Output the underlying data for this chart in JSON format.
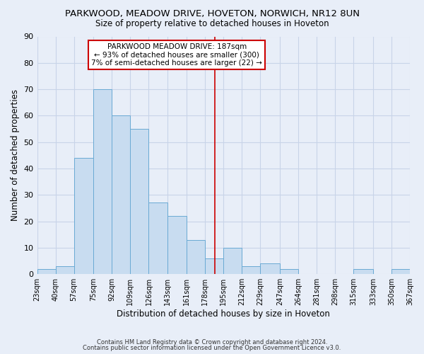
{
  "title": "PARKWOOD, MEADOW DRIVE, HOVETON, NORWICH, NR12 8UN",
  "subtitle": "Size of property relative to detached houses in Hoveton",
  "xlabel": "Distribution of detached houses by size in Hoveton",
  "ylabel": "Number of detached properties",
  "footer_line1": "Contains HM Land Registry data © Crown copyright and database right 2024.",
  "footer_line2": "Contains public sector information licensed under the Open Government Licence v3.0.",
  "bin_edges": [
    23,
    40,
    57,
    75,
    92,
    109,
    126,
    143,
    161,
    178,
    195,
    212,
    229,
    247,
    264,
    281,
    298,
    315,
    333,
    350,
    367
  ],
  "bar_heights": [
    2,
    3,
    44,
    70,
    60,
    55,
    27,
    22,
    13,
    6,
    10,
    3,
    4,
    2,
    0,
    0,
    0,
    2,
    0,
    2
  ],
  "bar_color": "#c8dcf0",
  "bar_edge_color": "#6aaad4",
  "reference_line_x": 187,
  "annotation_title": "PARKWOOD MEADOW DRIVE: 187sqm",
  "annotation_line1": "← 93% of detached houses are smaller (300)",
  "annotation_line2": "7% of semi-detached houses are larger (22) →",
  "ylim": [
    0,
    90
  ],
  "annotation_box_facecolor": "#ffffff",
  "annotation_box_edgecolor": "#cc0000",
  "reference_line_color": "#cc0000",
  "grid_color": "#c8d4e8",
  "background_color": "#e8eef8",
  "spine_color": "#aabbcc"
}
